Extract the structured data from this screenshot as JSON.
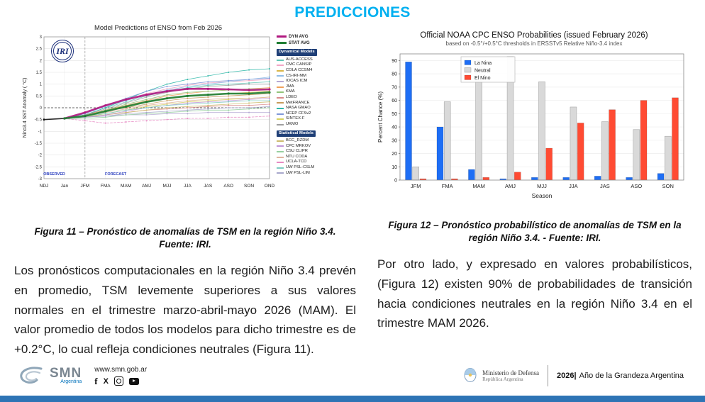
{
  "page": {
    "title": "PREDICCIONES",
    "accent_color": "#00b0f0"
  },
  "figure11": {
    "caption": "Figura 11 – Pronóstico de anomalías de TSM en la región Niño 3.4. Fuente: IRI."
  },
  "figure12": {
    "caption": "Figura 12 – Pronóstico probabilístico de anomalías de TSM en la región Niño 3.4. - Fuente: IRI."
  },
  "paragraphs": {
    "left": "Los pronósticos computacionales en la región Niño 3.4 prevén en promedio, TSM levemente superiores a sus valores normales en el trimestre marzo-abril-mayo 2026 (MAM). El valor promedio de todos los modelos para dicho trimestre es de +0.2°C, lo cual refleja condiciones neutrales (Figura 11).",
    "right": "Por otro lado, y expresado en valores probabilísticos, (Figura 12) existen 90% de probabilidades de transición hacia condiciones neutrales en la región Niño 3.4 en el trimestre MAM 2026."
  },
  "footer": {
    "website": "www.smn.gob.ar",
    "smn": "SMN",
    "smn_sub": "Argentina",
    "facebook_glyph": "f",
    "x_glyph": "X",
    "ministry_line1": "Ministerio de Defensa",
    "ministry_line2": "República Argentina",
    "year": "2026|",
    "motto": "Año de la Grandeza Argentina"
  },
  "chart_data": [
    {
      "type": "line",
      "title": "Model Predictions of ENSO from Feb 2026",
      "logo_text": "IRI",
      "ylabel": "Nino3.4 SST Anomaly ( °C)",
      "xlabel": "",
      "ylim": [
        -3,
        3
      ],
      "ytick_step": 0.5,
      "x": [
        "NDJ",
        "Jan",
        "JFM",
        "FMA",
        "MAM",
        "AMJ",
        "MJJ",
        "JJA",
        "JAS",
        "ASO",
        "SON",
        "OND"
      ],
      "observed_label": "OBSERVED",
      "forecast_label": "FORECAST",
      "observed": {
        "color": "#111111",
        "values": [
          -0.5,
          -0.45,
          null,
          null,
          null,
          null,
          null,
          null,
          null,
          null,
          null,
          null
        ]
      },
      "averages": [
        {
          "name": "DYN AVG",
          "color": "#b0187f",
          "values": [
            null,
            -0.45,
            -0.2,
            0.1,
            0.35,
            0.55,
            0.7,
            0.8,
            0.8,
            0.78,
            0.75,
            0.78
          ]
        },
        {
          "name": "STAT AVG",
          "color": "#1e7d32",
          "values": [
            null,
            -0.45,
            -0.35,
            -0.15,
            0.05,
            0.25,
            0.4,
            0.5,
            0.55,
            0.6,
            0.6,
            0.65
          ]
        }
      ],
      "models": [
        {
          "name": "AUS-ACCESS",
          "group": "dyn",
          "color": "#62c6b5",
          "values": [
            null,
            -0.45,
            -0.3,
            0.0,
            0.25,
            0.5,
            0.7,
            0.85,
            0.95,
            1.0,
            1.05,
            1.1
          ]
        },
        {
          "name": "CMC CANSIP",
          "group": "dyn",
          "color": "#f2a6c5",
          "values": [
            null,
            -0.45,
            -0.2,
            0.1,
            0.35,
            0.6,
            0.8,
            0.95,
            1.05,
            1.1,
            1.15,
            1.2
          ]
        },
        {
          "name": "COLA CCSM4",
          "group": "dyn",
          "color": "#d9b648",
          "values": [
            null,
            -0.45,
            -0.35,
            -0.15,
            0.05,
            0.25,
            0.4,
            0.5,
            0.55,
            0.6,
            0.65,
            0.7
          ]
        },
        {
          "name": "CS-IRI-MM",
          "group": "dyn",
          "color": "#8fbce6",
          "values": [
            null,
            -0.45,
            -0.25,
            0.05,
            0.3,
            0.55,
            0.75,
            0.9,
            1.0,
            1.1,
            1.2,
            1.3
          ]
        },
        {
          "name": "IOCAS ICM",
          "group": "dyn",
          "color": "#b5a8d4",
          "values": [
            null,
            -0.45,
            -0.4,
            -0.35,
            -0.3,
            -0.3,
            -0.25,
            -0.25,
            -0.2,
            -0.2,
            -0.2,
            -0.2
          ]
        },
        {
          "name": "JMA",
          "group": "dyn",
          "color": "#f0a05a",
          "values": [
            null,
            -0.45,
            -0.3,
            -0.1,
            0.1,
            0.3,
            0.5,
            0.6,
            0.7,
            0.75,
            0.8,
            0.85
          ]
        },
        {
          "name": "KMA",
          "group": "dyn",
          "color": "#92c47a",
          "values": [
            null,
            -0.45,
            -0.35,
            -0.1,
            0.15,
            0.35,
            0.55,
            0.65,
            0.7,
            0.75,
            0.8,
            0.8
          ]
        },
        {
          "name": "LDEO",
          "group": "dyn",
          "color": "#d98b8b",
          "values": [
            null,
            -0.45,
            -0.4,
            -0.3,
            -0.2,
            -0.1,
            -0.05,
            0.0,
            0.05,
            0.1,
            0.1,
            0.15
          ]
        },
        {
          "name": "MetFRANCE",
          "group": "dyn",
          "color": "#c79a5b",
          "values": [
            null,
            -0.45,
            -0.35,
            -0.15,
            0.0,
            0.15,
            0.3,
            0.4,
            0.45,
            0.5,
            0.55,
            0.6
          ]
        },
        {
          "name": "NASA GMAO",
          "group": "dyn",
          "color": "#2fb8a8",
          "values": [
            null,
            -0.45,
            -0.3,
            0.0,
            0.35,
            0.7,
            1.0,
            1.2,
            1.35,
            1.5,
            1.6,
            1.65
          ]
        },
        {
          "name": "NCEP CFSv2",
          "group": "dyn",
          "color": "#7f97d8",
          "values": [
            null,
            -0.45,
            -0.25,
            0.1,
            0.4,
            0.7,
            0.9,
            1.0,
            1.1,
            1.15,
            1.2,
            1.25
          ]
        },
        {
          "name": "SINTEX-F",
          "group": "dyn",
          "color": "#d8d261",
          "values": [
            null,
            -0.45,
            -0.4,
            -0.25,
            -0.1,
            0.05,
            0.15,
            0.25,
            0.3,
            0.35,
            0.4,
            0.45
          ]
        },
        {
          "name": "UKMO",
          "group": "dyn",
          "color": "#9e9e9e",
          "values": [
            null,
            -0.45,
            -0.3,
            -0.05,
            0.2,
            0.45,
            0.65,
            0.8,
            0.9,
            0.95,
            1.0,
            1.0
          ]
        },
        {
          "name": "BCC_RZDM",
          "group": "stat",
          "color": "#cdbb6e",
          "values": [
            null,
            -0.45,
            -0.4,
            -0.3,
            -0.2,
            -0.1,
            0.0,
            0.05,
            0.1,
            0.15,
            0.2,
            0.25
          ]
        },
        {
          "name": "CPC MRKOV",
          "group": "stat",
          "color": "#bf96d6",
          "values": [
            null,
            -0.45,
            -0.4,
            -0.3,
            -0.15,
            0.0,
            0.1,
            0.2,
            0.25,
            0.3,
            0.35,
            0.4
          ]
        },
        {
          "name": "CSU CLIPR",
          "group": "stat",
          "color": "#97d0a0",
          "values": [
            null,
            -0.45,
            -0.45,
            -0.4,
            -0.3,
            -0.25,
            -0.2,
            -0.15,
            -0.1,
            -0.1,
            -0.05,
            0.0
          ]
        },
        {
          "name": "NTU CODA",
          "group": "stat",
          "color": "#e0b49e",
          "values": [
            null,
            -0.45,
            -0.35,
            -0.2,
            -0.05,
            0.1,
            0.2,
            0.3,
            0.35,
            0.4,
            0.4,
            0.45
          ]
        },
        {
          "name": "UCLA-TCD",
          "group": "stat",
          "color": "#e78ac3",
          "dash": "3 2",
          "values": [
            null,
            -0.45,
            -0.55,
            -0.65,
            -0.6,
            -0.55,
            -0.5,
            -0.45,
            -0.45,
            -0.4,
            -0.4,
            -0.35
          ]
        },
        {
          "name": "UW PSL-CSLM",
          "group": "stat",
          "color": "#7fccc2",
          "values": [
            null,
            -0.45,
            -0.35,
            -0.25,
            -0.1,
            0.0,
            0.1,
            0.15,
            0.2,
            0.25,
            0.3,
            0.3
          ]
        },
        {
          "name": "UW PSL-LIM",
          "group": "stat",
          "color": "#a8a8cc",
          "values": [
            null,
            -0.45,
            -0.4,
            -0.35,
            -0.25,
            -0.2,
            -0.15,
            -0.1,
            -0.05,
            0.0,
            0.0,
            0.05
          ]
        }
      ],
      "legend_groups": [
        {
          "title": "Dynamical Models",
          "group": "dyn"
        },
        {
          "title": "Statistical Models",
          "group": "stat"
        }
      ]
    },
    {
      "type": "bar",
      "title": "Official NOAA CPC ENSO Probabilities (issued February 2026)",
      "subtitle": "based on -0.5°/+0.5°C thresholds in ERSSTv5 Relative Niño-3.4 index",
      "xlabel": "Season",
      "ylabel": "Percent Chance (%)",
      "ylim": [
        0,
        95
      ],
      "yticks": [
        0,
        10,
        20,
        30,
        40,
        50,
        60,
        70,
        80,
        90
      ],
      "categories": [
        "JFM",
        "FMA",
        "MAM",
        "AMJ",
        "MJJ",
        "JJA",
        "JAS",
        "ASO",
        "SON"
      ],
      "series": [
        {
          "name": "La Nina",
          "color": "#1e6ef5",
          "values": [
            89,
            40,
            8,
            1,
            2,
            2,
            3,
            2,
            5
          ]
        },
        {
          "name": "Neutral",
          "color": "#d9d9d9",
          "border": "#9a9a9a",
          "values": [
            10,
            59,
            90,
            93,
            74,
            55,
            44,
            38,
            33
          ]
        },
        {
          "name": "El Nino",
          "color": "#ff4b33",
          "values": [
            1,
            1,
            2,
            6,
            24,
            43,
            53,
            60,
            62
          ]
        }
      ]
    }
  ]
}
